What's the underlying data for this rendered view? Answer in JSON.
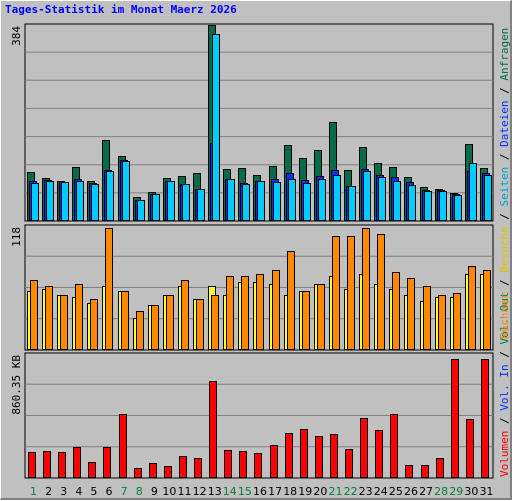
{
  "title": "Tages-Statistik im Monat Maerz 2026",
  "colors": {
    "anfragen": "#066b4b",
    "dateien": "#0033ff",
    "seiten": "#00ccff",
    "besuche": "#ffff33",
    "rechner": "#ff8800",
    "volumen": "#ff0000",
    "weekend_label": "#008040",
    "weekday_label": "#000000",
    "background": "#c0c0c0",
    "grid": "#808080"
  },
  "side_labels": {
    "volumen": "Volumen",
    "vol_in": "Vol. In",
    "vol_out": "Vol. Out",
    "rechner": "Rechner",
    "besuche": "Besuche",
    "seiten": "Seiten",
    "dateien": "Dateien",
    "anfragen": "Anfragen",
    "separator": " / "
  },
  "chart_data": {
    "type": "bar",
    "x_label_color_note": "weekend days shown in green",
    "categories": [
      "1",
      "2",
      "3",
      "4",
      "5",
      "6",
      "7",
      "8",
      "9",
      "10",
      "11",
      "12",
      "13",
      "14",
      "15",
      "16",
      "17",
      "18",
      "19",
      "20",
      "21",
      "22",
      "23",
      "24",
      "25",
      "26",
      "27",
      "28",
      "29",
      "30",
      "31"
    ],
    "weekend_days": [
      "1",
      "7",
      "8",
      "14",
      "15",
      "21",
      "22",
      "28",
      "29"
    ],
    "panels": [
      {
        "id": "requests",
        "ymax_label": "384",
        "ylim": [
          0,
          384
        ],
        "series": [
          {
            "key": "anfragen",
            "values": [
              94,
              82,
              76,
              105,
              76,
              158,
              126,
              46,
              56,
              82,
              86,
              92,
              384,
              100,
              102,
              88,
              106,
              147,
              122,
              138,
              193,
              98,
              144,
              112,
              104,
              84,
              64,
              62,
              54,
              150,
              102
            ]
          },
          {
            "key": "dateien",
            "values": [
              76,
              78,
              74,
              80,
              72,
              98,
              118,
              40,
              52,
              76,
              70,
              62,
              152,
              80,
              72,
              76,
              80,
              92,
              78,
              86,
              98,
              66,
              100,
              88,
              84,
              74,
              60,
              60,
              52,
              96,
              92
            ]
          },
          {
            "key": "seiten",
            "values": [
              72,
              76,
              74,
              76,
              70,
              96,
              116,
              40,
              52,
              76,
              70,
              62,
              366,
              80,
              70,
              76,
              74,
              80,
              72,
              80,
              88,
              66,
              96,
              84,
              76,
              68,
              58,
              58,
              50,
              112,
              88
            ]
          }
        ]
      },
      {
        "id": "visits",
        "ymax_label": "118",
        "ylim": [
          0,
          118
        ],
        "series": [
          {
            "key": "besuche",
            "values": [
              56,
              58,
              52,
              50,
              44,
              60,
              56,
              30,
              42,
              52,
              60,
              48,
              60,
              52,
              64,
              64,
              62,
              52,
              56,
              62,
              70,
              58,
              72,
              62,
              58,
              52,
              46,
              50,
              50,
              72,
              72
            ]
          },
          {
            "key": "rechner",
            "values": [
              66,
              60,
              52,
              62,
              48,
              116,
              56,
              36,
              42,
              52,
              66,
              48,
              52,
              70,
              70,
              72,
              76,
              94,
              56,
              62,
              108,
              108,
              116,
              110,
              74,
              68,
              60,
              52,
              54,
              80,
              76
            ]
          }
        ]
      },
      {
        "id": "volume",
        "ymax_label": "860.35 KB",
        "ylim": [
          0,
          860.35
        ],
        "series": [
          {
            "key": "volumen",
            "values": [
              178,
              180,
              174,
              208,
              106,
              208,
              442,
              66,
              96,
              76,
              146,
              134,
              674,
              188,
              182,
              168,
              226,
              310,
              338,
              290,
              304,
              198,
              416,
              332,
              440,
              86,
              86,
              134,
              828,
              406,
              828
            ]
          }
        ]
      }
    ]
  }
}
